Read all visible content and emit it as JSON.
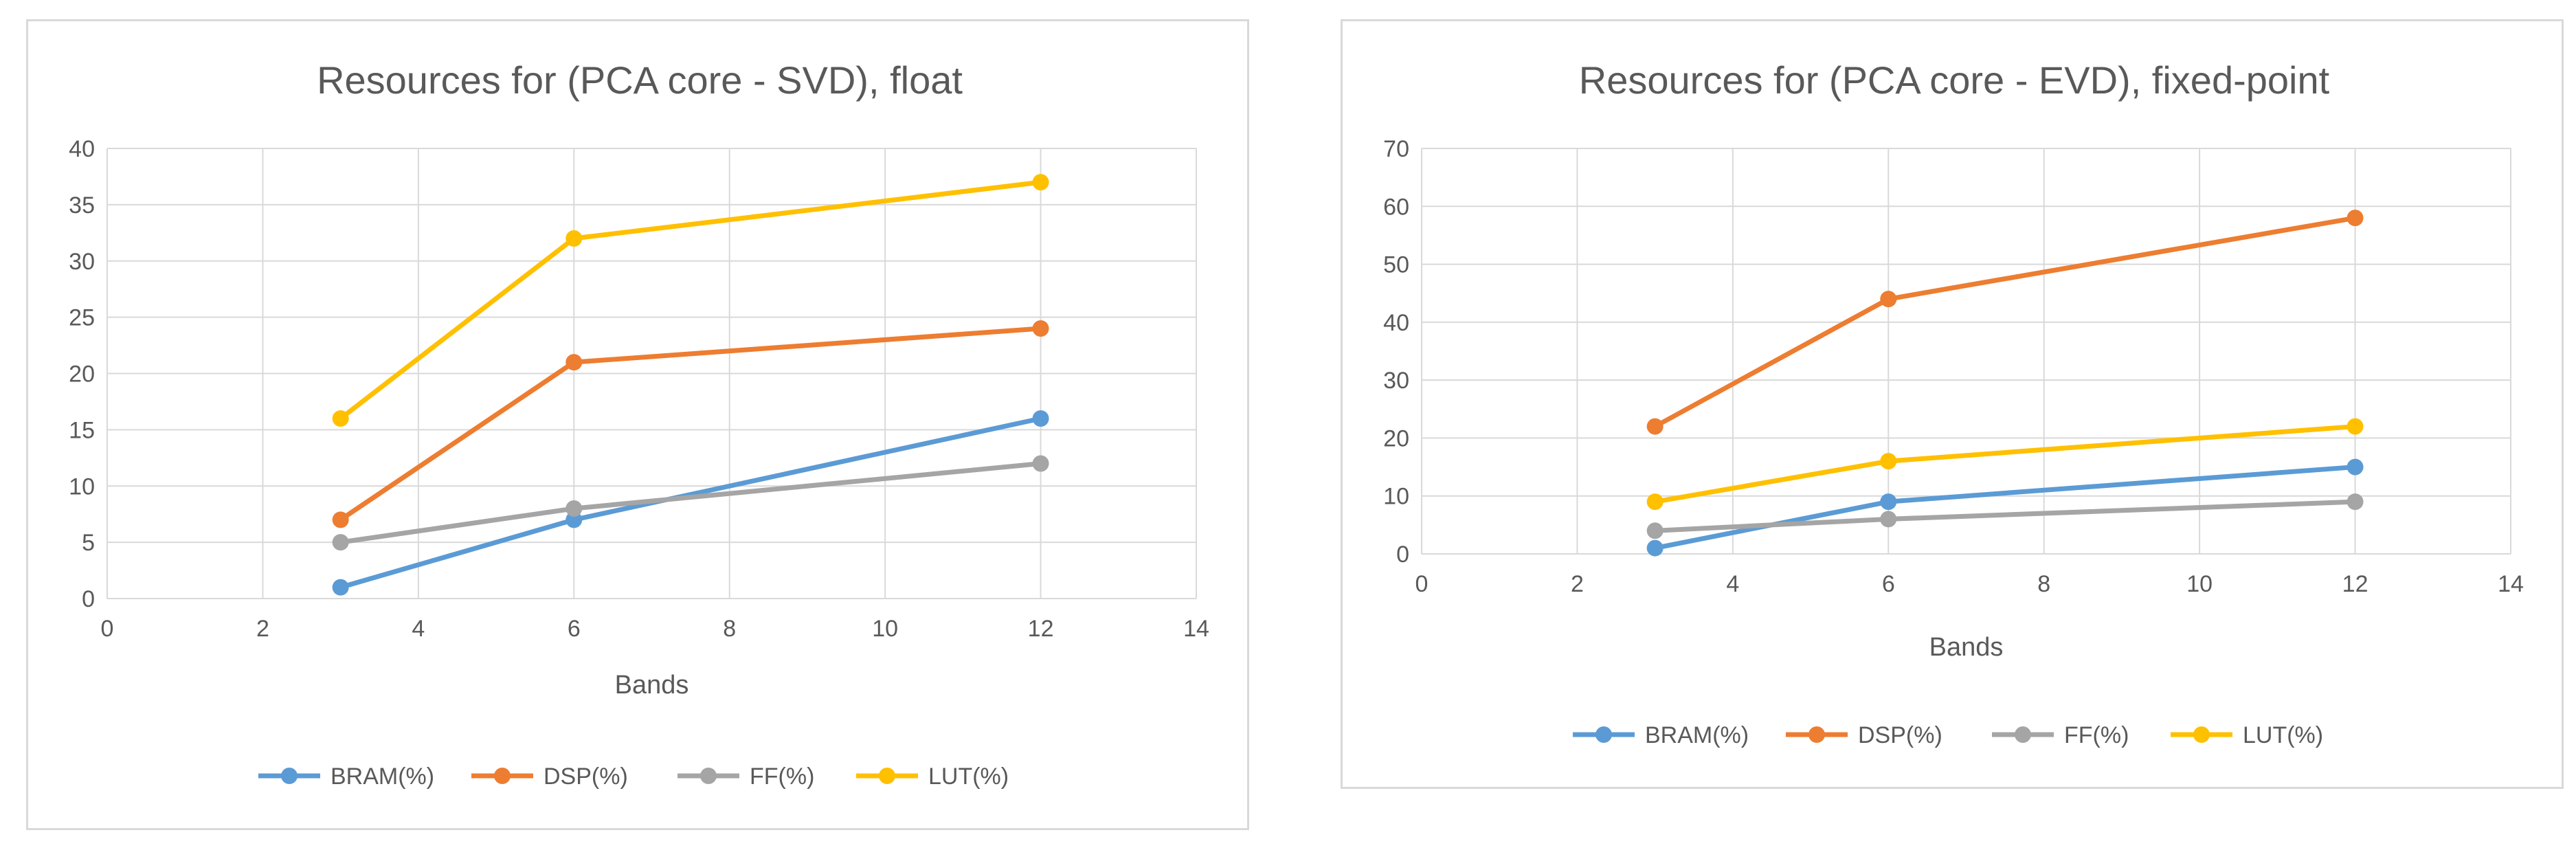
{
  "chart_data": [
    {
      "type": "line",
      "title": "Resources for (PCA core - SVD), float",
      "xlabel": "Bands",
      "ylabel": "",
      "x": [
        3,
        6,
        12
      ],
      "xlim": [
        0,
        14
      ],
      "ylim": [
        0,
        40
      ],
      "xticks": [
        0,
        2,
        4,
        6,
        8,
        10,
        12,
        14
      ],
      "yticks": [
        0,
        5,
        10,
        15,
        20,
        25,
        30,
        35,
        40
      ],
      "grid": true,
      "legend": "bottom",
      "series": [
        {
          "name": "BRAM(%)",
          "color": "#5b9bd5",
          "values": [
            1,
            7,
            16
          ]
        },
        {
          "name": "DSP(%)",
          "color": "#ed7d31",
          "values": [
            7,
            21,
            24
          ]
        },
        {
          "name": "FF(%)",
          "color": "#a5a5a5",
          "values": [
            5,
            8,
            12
          ]
        },
        {
          "name": "LUT(%)",
          "color": "#ffc000",
          "values": [
            16,
            32,
            37
          ]
        }
      ]
    },
    {
      "type": "line",
      "title": "Resources for (PCA core - EVD), fixed-point",
      "xlabel": "Bands",
      "ylabel": "",
      "x": [
        3,
        6,
        12
      ],
      "xlim": [
        0,
        14
      ],
      "ylim": [
        0,
        70
      ],
      "xticks": [
        0,
        2,
        4,
        6,
        8,
        10,
        12,
        14
      ],
      "yticks": [
        0,
        10,
        20,
        30,
        40,
        50,
        60,
        70
      ],
      "grid": true,
      "legend": "bottom",
      "series": [
        {
          "name": "BRAM(%)",
          "color": "#5b9bd5",
          "values": [
            1,
            9,
            15
          ]
        },
        {
          "name": "DSP(%)",
          "color": "#ed7d31",
          "values": [
            22,
            44,
            58
          ]
        },
        {
          "name": "FF(%)",
          "color": "#a5a5a5",
          "values": [
            4,
            6,
            9
          ]
        },
        {
          "name": "LUT(%)",
          "color": "#ffc000",
          "values": [
            9,
            16,
            22
          ]
        }
      ]
    }
  ]
}
